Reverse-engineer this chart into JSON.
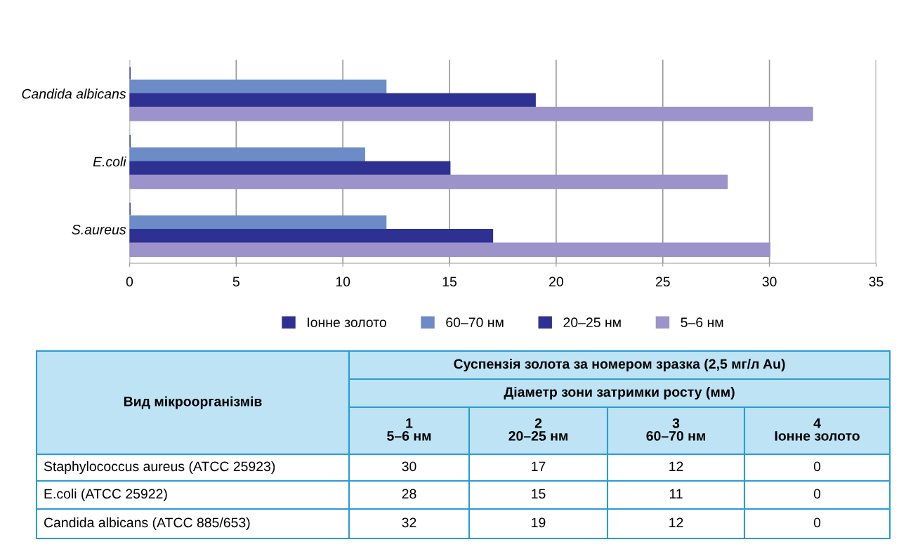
{
  "chart_data": [
    {
      "type": "bar",
      "orientation": "horizontal",
      "categories": [
        "Candida albicans",
        "E.coli",
        "S.aureus"
      ],
      "series": [
        {
          "name": "Іонне золото",
          "color": "#2e3192",
          "values": [
            0,
            0,
            0
          ]
        },
        {
          "name": "60–70 нм",
          "color": "#6b8cc7",
          "values": [
            12,
            11,
            12
          ]
        },
        {
          "name": "20–25 нм",
          "color": "#2e3192",
          "values": [
            19,
            15,
            17
          ]
        },
        {
          "name": "5–6 нм",
          "color": "#9b93c9",
          "values": [
            32,
            28,
            30
          ]
        }
      ],
      "xlim": [
        0,
        35
      ],
      "xticks": [
        0,
        5,
        10,
        15,
        20,
        25,
        30,
        35
      ],
      "grid": "x",
      "legend": "bottom"
    },
    {
      "type": "other",
      "annotations": [
        "Вид мікроорганізмів",
        "Суспензія золота за номером зразка (2,5 мг/л Au)",
        "Діаметр зони затримки росту (мм)",
        "1\n5–6 нм",
        "2\n20–25 нм",
        "3\n60–70 нм",
        "4\nІонне золото",
        "Staphylococcus aureus (ATCC 25923)",
        "E.coli (ATCC 25922)",
        "Candida albicans (ATCC 885/653)",
        "30",
        "17",
        "12",
        "0",
        "28",
        "15",
        "11",
        "0",
        "32",
        "19",
        "12",
        "0"
      ]
    }
  ]
}
